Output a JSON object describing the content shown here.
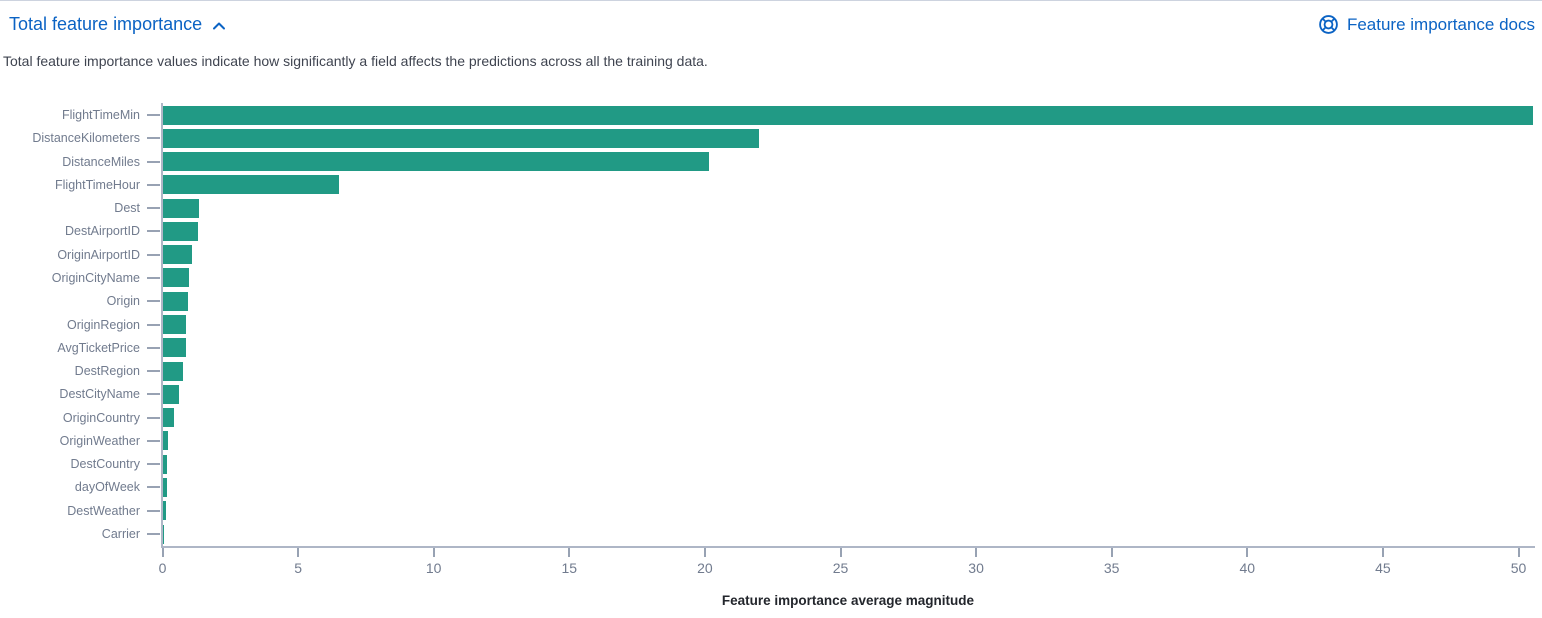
{
  "header": {
    "title": "Total feature importance",
    "docs_link_label": "Feature importance docs",
    "description": "Total feature importance values indicate how significantly a field affects the predictions across all the training data."
  },
  "icons": {
    "collapse_icon": "chevron-up",
    "docs_icon": "life-ring-help"
  },
  "colors": {
    "link_blue": "#0b63c4",
    "bar_teal": "#219a85",
    "axis_line": "#aeb6c6",
    "tick_mark": "#98a2b3",
    "axis_label": "#717b8e",
    "axis_title": "#23262c",
    "description_text": "#3f4450"
  },
  "chart_data": {
    "type": "bar",
    "orientation": "horizontal",
    "title": "Total feature importance",
    "categories": [
      "FlightTimeMin",
      "DistanceKilometers",
      "DistanceMiles",
      "FlightTimeHour",
      "Dest",
      "DestAirportID",
      "OriginAirportID",
      "OriginCityName",
      "Origin",
      "OriginRegion",
      "AvgTicketPrice",
      "DestRegion",
      "DestCityName",
      "OriginCountry",
      "OriginWeather",
      "DestCountry",
      "dayOfWeek",
      "DestWeather",
      "Carrier"
    ],
    "values": [
      50.55,
      22.0,
      20.15,
      6.5,
      1.35,
      1.32,
      1.07,
      0.97,
      0.93,
      0.87,
      0.85,
      0.75,
      0.62,
      0.42,
      0.21,
      0.17,
      0.15,
      0.12,
      0.05
    ],
    "xlabel": "Feature importance average magnitude",
    "ylabel": "",
    "xlim": [
      0,
      50.55
    ],
    "x_ticks": [
      0,
      5,
      10,
      15,
      20,
      25,
      30,
      35,
      40,
      45,
      50
    ],
    "grid": false,
    "legend": false
  }
}
